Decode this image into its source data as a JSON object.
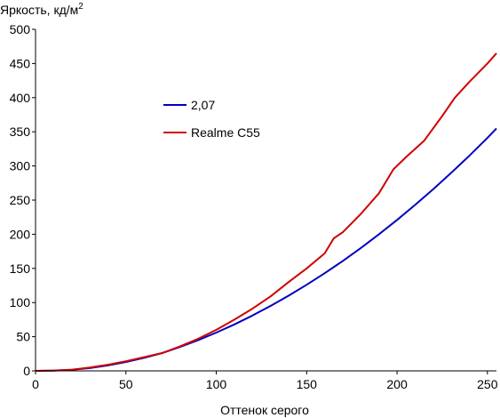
{
  "chart_data": {
    "type": "line",
    "title": "",
    "ylabel_main": "Яркость, кд/м",
    "ylabel_sup": "2",
    "xlabel": "Оттенок серого",
    "xlim": [
      0,
      255
    ],
    "ylim": [
      0,
      500
    ],
    "x_ticks": [
      0,
      50,
      100,
      150,
      200,
      250
    ],
    "y_ticks": [
      0,
      50,
      100,
      150,
      200,
      250,
      300,
      350,
      400,
      450,
      500
    ],
    "grid": false,
    "legend_position": "upper-left-inside",
    "series": [
      {
        "name": "2,07",
        "color": "#0000c0",
        "x": [
          0,
          10,
          20,
          30,
          40,
          50,
          60,
          70,
          80,
          90,
          100,
          110,
          120,
          130,
          140,
          150,
          160,
          170,
          180,
          190,
          200,
          210,
          220,
          230,
          240,
          250,
          255
        ],
        "y": [
          0,
          0.4,
          1.6,
          4,
          8,
          13,
          19,
          26,
          35,
          45,
          56,
          68,
          81,
          95,
          110,
          126,
          143,
          161,
          180,
          200,
          221,
          243,
          266,
          290,
          315,
          341,
          355
        ]
      },
      {
        "name": "Realme C55",
        "color": "#d00000",
        "x": [
          0,
          10,
          20,
          30,
          40,
          50,
          60,
          70,
          80,
          90,
          100,
          110,
          120,
          130,
          140,
          150,
          160,
          165,
          170,
          180,
          190,
          198,
          205,
          215,
          225,
          232,
          240,
          250,
          255
        ],
        "y": [
          0,
          0.5,
          1.5,
          5,
          9,
          14,
          20,
          26,
          36,
          47,
          60,
          75,
          91,
          109,
          130,
          150,
          172,
          194,
          203,
          230,
          260,
          295,
          313,
          337,
          373,
          400,
          423,
          450,
          465
        ]
      }
    ]
  }
}
